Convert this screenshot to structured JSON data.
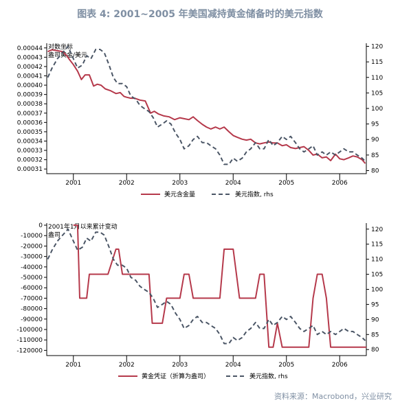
{
  "header": {
    "title": "图表 4:  2001~2005 年美国减持黄金储备时的美元指数"
  },
  "footer": {
    "source": "资料来源：Macrobond，兴业研究"
  },
  "colors": {
    "primary_series": "#b5384a",
    "secondary_series": "#4a5565",
    "axis": "#000000",
    "title": "#7f8fa3"
  },
  "chart_data": [
    {
      "type": "line",
      "title": "",
      "annotation": [
        "对数坐标",
        "盎司黄金/美元"
      ],
      "x_labels": [
        "2001",
        "2002",
        "2003",
        "2004",
        "2005",
        "2006"
      ],
      "xlim": [
        2000.5,
        2006.5
      ],
      "ylim_left": [
        0.000305,
        0.000445
      ],
      "ylim_right": [
        79,
        121
      ],
      "left_ticks": [
        "0.00044",
        "0.00043",
        "0.00042",
        "0.00041",
        "0.00040",
        "0.00039",
        "0.00038",
        "0.00037",
        "0.00036",
        "0.00035",
        "0.00034",
        "0.00033",
        "0.00032",
        "0.00031"
      ],
      "right_ticks": [
        "120",
        "115",
        "110",
        "105",
        "100",
        "95",
        "90",
        "85",
        "80"
      ],
      "legend_position": "bottom-center",
      "series": [
        {
          "name": "美元含金量",
          "axis": "left",
          "style": "solid",
          "x": [
            2000.52,
            2000.6,
            2000.7,
            2000.8,
            2000.87,
            2000.92,
            2001.0,
            2001.08,
            2001.15,
            2001.22,
            2001.3,
            2001.38,
            2001.45,
            2001.52,
            2001.6,
            2001.7,
            2001.8,
            2001.88,
            2001.95,
            2002.0,
            2002.08,
            2002.15,
            2002.25,
            2002.35,
            2002.45,
            2002.52,
            2002.6,
            2002.7,
            2002.8,
            2002.9,
            2003.0,
            2003.08,
            2003.17,
            2003.25,
            2003.33,
            2003.42,
            2003.5,
            2003.58,
            2003.67,
            2003.75,
            2003.83,
            2003.92,
            2004.0,
            2004.08,
            2004.17,
            2004.25,
            2004.33,
            2004.42,
            2004.5,
            2004.58,
            2004.67,
            2004.75,
            2004.83,
            2004.92,
            2005.0,
            2005.08,
            2005.17,
            2005.25,
            2005.33,
            2005.42,
            2005.5,
            2005.58,
            2005.67,
            2005.75,
            2005.83,
            2005.92,
            2006.0,
            2006.08,
            2006.17,
            2006.25,
            2006.33,
            2006.42,
            2006.48
          ],
          "y": [
            0.000436,
            0.000438,
            0.000437,
            0.000436,
            0.000432,
            0.000428,
            0.000422,
            0.000415,
            0.000406,
            0.000411,
            0.000411,
            0.000399,
            0.000401,
            0.0004,
            0.000396,
            0.000394,
            0.000391,
            0.000392,
            0.000388,
            0.000387,
            0.000386,
            0.000386,
            0.000384,
            0.000383,
            0.00037,
            0.000372,
            0.000369,
            0.000367,
            0.000366,
            0.000363,
            0.000365,
            0.000364,
            0.000363,
            0.000366,
            0.000362,
            0.000358,
            0.000355,
            0.000353,
            0.000355,
            0.000353,
            0.000355,
            0.00035,
            0.000346,
            0.000344,
            0.000342,
            0.000341,
            0.000342,
            0.000338,
            0.000337,
            0.000338,
            0.000339,
            0.000338,
            0.000338,
            0.000335,
            0.000336,
            0.000333,
            0.000332,
            0.000333,
            0.000334,
            0.00033,
            0.000325,
            0.000326,
            0.000322,
            0.000323,
            0.000319,
            0.000326,
            0.000321,
            0.00032,
            0.000322,
            0.000324,
            0.000323,
            0.00032,
            0.000316
          ]
        },
        {
          "name": "美元指数, rhs",
          "axis": "right",
          "style": "dashed",
          "x": [
            2000.52,
            2000.6,
            2000.7,
            2000.8,
            2000.9,
            2001.0,
            2001.08,
            2001.17,
            2001.25,
            2001.33,
            2001.42,
            2001.5,
            2001.58,
            2001.67,
            2001.75,
            2001.83,
            2001.92,
            2002.0,
            2002.08,
            2002.17,
            2002.25,
            2002.33,
            2002.42,
            2002.5,
            2002.58,
            2002.67,
            2002.75,
            2002.83,
            2002.92,
            2003.0,
            2003.08,
            2003.17,
            2003.25,
            2003.33,
            2003.42,
            2003.5,
            2003.58,
            2003.67,
            2003.75,
            2003.83,
            2003.92,
            2004.0,
            2004.08,
            2004.17,
            2004.25,
            2004.33,
            2004.42,
            2004.5,
            2004.58,
            2004.67,
            2004.75,
            2004.83,
            2004.92,
            2005.0,
            2005.08,
            2005.17,
            2005.25,
            2005.33,
            2005.42,
            2005.5,
            2005.58,
            2005.67,
            2005.75,
            2005.83,
            2005.92,
            2006.0,
            2006.08,
            2006.17,
            2006.25,
            2006.33,
            2006.42,
            2006.48
          ],
          "y": [
            110,
            113,
            116,
            118,
            120,
            116,
            113,
            114,
            117,
            116,
            119,
            119,
            118,
            114,
            110,
            108,
            108,
            107,
            104,
            103,
            101,
            100,
            99,
            97,
            94,
            95,
            96,
            95,
            92,
            90,
            87,
            88,
            90,
            91,
            89,
            89,
            88,
            87,
            85,
            82,
            82,
            84,
            83,
            84,
            86,
            87,
            89,
            87,
            87,
            90,
            88,
            89,
            91,
            90,
            91,
            89,
            87,
            86,
            87,
            88,
            85,
            86,
            85,
            86,
            85,
            86,
            87,
            86,
            86,
            85,
            84,
            83
          ]
        }
      ]
    },
    {
      "type": "line",
      "title": "",
      "annotation": [
        "2001年1月以来累计变动",
        "盎司"
      ],
      "x_labels": [
        "2001",
        "2002",
        "2003",
        "2004",
        "2005",
        "2006"
      ],
      "xlim": [
        2000.5,
        2006.5
      ],
      "ylim_left": [
        -125000,
        2000
      ],
      "ylim_right": [
        78,
        122
      ],
      "left_ticks": [
        "0",
        "-10000",
        "-20000",
        "-30000",
        "-40000",
        "-50000",
        "-60000",
        "-70000",
        "-80000",
        "-90000",
        "-100000",
        "-110000",
        "-120000"
      ],
      "right_ticks": [
        "120",
        "115",
        "110",
        "105",
        "100",
        "95",
        "90",
        "85",
        "80"
      ],
      "legend_position": "bottom-center",
      "series": [
        {
          "name": "黄金凭证（折算为盎司）",
          "axis": "left",
          "style": "solid",
          "x": [
            2001.0,
            2001.08,
            2001.12,
            2001.25,
            2001.3,
            2001.38,
            2001.5,
            2001.65,
            2001.8,
            2001.85,
            2001.92,
            2002.0,
            2002.17,
            2002.25,
            2002.42,
            2002.48,
            2002.67,
            2002.75,
            2002.83,
            2002.92,
            2003.0,
            2003.08,
            2003.17,
            2003.25,
            2003.33,
            2003.5,
            2003.67,
            2003.75,
            2003.83,
            2003.92,
            2004.0,
            2004.12,
            2004.17,
            2004.33,
            2004.42,
            2004.5,
            2004.58,
            2004.67,
            2004.75,
            2004.83,
            2004.92,
            2005.0,
            2005.08,
            2005.17,
            2005.25,
            2005.33,
            2005.42,
            2005.5,
            2005.58,
            2005.67,
            2005.75,
            2005.83,
            2005.92,
            2006.0,
            2006.08,
            2006.25,
            2006.5
          ],
          "y": [
            0,
            0,
            -70000,
            -70000,
            -47000,
            -47000,
            -47000,
            -47000,
            -23000,
            -23000,
            -47000,
            -47000,
            -47000,
            -47000,
            -47000,
            -94000,
            -94000,
            -70000,
            -70000,
            -70000,
            -70000,
            -47000,
            -47000,
            -70000,
            -70000,
            -70000,
            -70000,
            -70000,
            -23000,
            -23000,
            -23000,
            -70000,
            -70000,
            -70000,
            -70000,
            -47000,
            -47000,
            -117000,
            -117000,
            -94000,
            -117000,
            -117000,
            -117000,
            -117000,
            -117000,
            -117000,
            -117000,
            -70000,
            -47000,
            -47000,
            -70000,
            -117000,
            -117000,
            -117000,
            -117000,
            -117000,
            -117000
          ]
        },
        {
          "name": "美元指数, rhs",
          "axis": "right",
          "style": "dashed",
          "x": [
            2000.52,
            2000.6,
            2000.7,
            2000.8,
            2000.9,
            2001.0,
            2001.08,
            2001.17,
            2001.25,
            2001.33,
            2001.42,
            2001.5,
            2001.58,
            2001.67,
            2001.75,
            2001.83,
            2001.92,
            2002.0,
            2002.08,
            2002.17,
            2002.25,
            2002.33,
            2002.42,
            2002.5,
            2002.58,
            2002.67,
            2002.75,
            2002.83,
            2002.92,
            2003.0,
            2003.08,
            2003.17,
            2003.25,
            2003.33,
            2003.42,
            2003.5,
            2003.58,
            2003.67,
            2003.75,
            2003.83,
            2003.92,
            2004.0,
            2004.08,
            2004.17,
            2004.25,
            2004.33,
            2004.42,
            2004.5,
            2004.58,
            2004.67,
            2004.75,
            2004.83,
            2004.92,
            2005.0,
            2005.08,
            2005.17,
            2005.25,
            2005.33,
            2005.42,
            2005.5,
            2005.58,
            2005.67,
            2005.75,
            2005.83,
            2005.92,
            2006.0,
            2006.08,
            2006.17,
            2006.25,
            2006.33,
            2006.42,
            2006.48
          ],
          "y": [
            110,
            113,
            116,
            118,
            120,
            116,
            113,
            114,
            117,
            116,
            119,
            119,
            118,
            114,
            110,
            108,
            108,
            107,
            104,
            103,
            101,
            100,
            99,
            97,
            94,
            95,
            96,
            95,
            92,
            90,
            87,
            88,
            90,
            91,
            89,
            89,
            88,
            87,
            85,
            82,
            82,
            84,
            83,
            84,
            86,
            87,
            89,
            87,
            87,
            90,
            88,
            89,
            91,
            90,
            91,
            89,
            87,
            86,
            87,
            88,
            85,
            86,
            85,
            86,
            85,
            86,
            87,
            86,
            86,
            85,
            84,
            83
          ]
        }
      ]
    }
  ]
}
